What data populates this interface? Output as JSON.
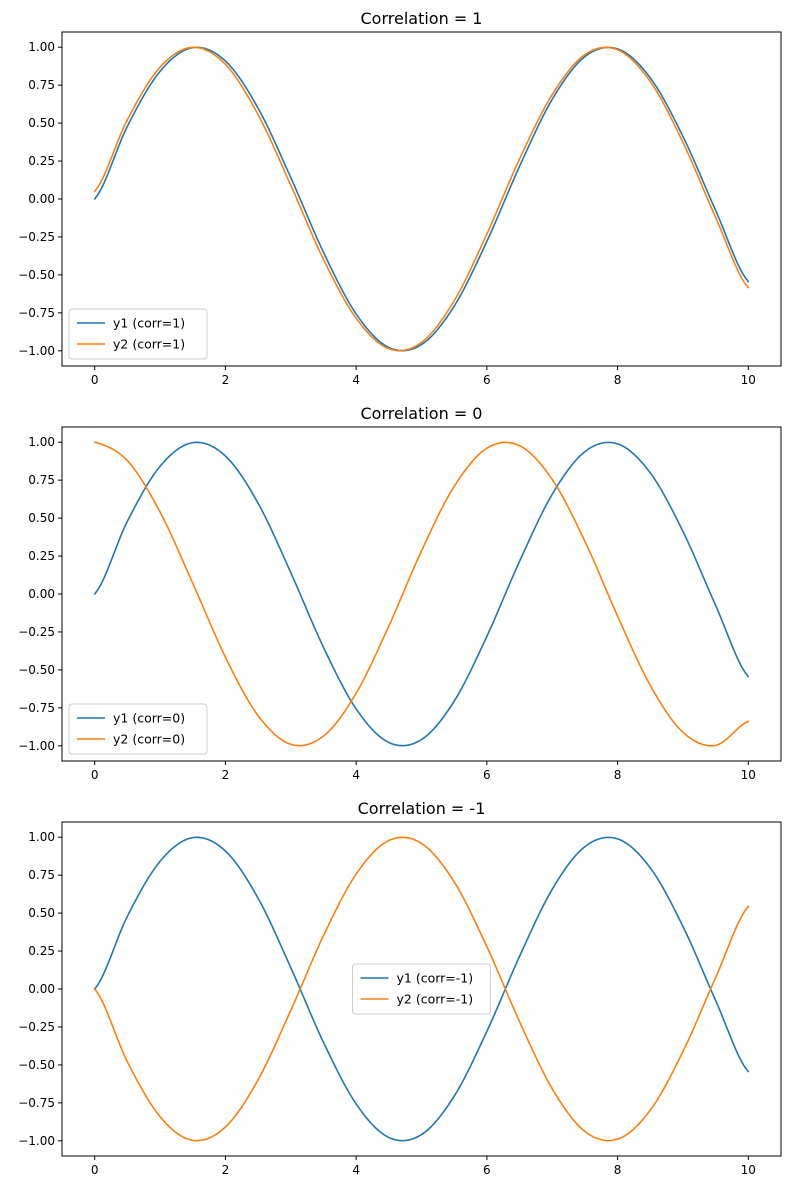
{
  "chart_data": [
    {
      "type": "line",
      "title": "Correlation = 1",
      "xlim": [
        -0.5,
        10.5
      ],
      "ylim": [
        -1.1,
        1.1
      ],
      "xticks": [
        0,
        2,
        4,
        6,
        8,
        10
      ],
      "xtick_labels": [
        "0",
        "2",
        "4",
        "6",
        "8",
        "10"
      ],
      "yticks": [
        -1.0,
        -0.75,
        -0.5,
        -0.25,
        0.0,
        0.25,
        0.5,
        0.75,
        1.0
      ],
      "ytick_labels": [
        "−1.00",
        "−0.75",
        "−0.50",
        "−0.25",
        "0.00",
        "0.25",
        "0.50",
        "0.75",
        "1.00"
      ],
      "grid": false,
      "legend_position": "lower-left",
      "x": [
        0,
        0.5,
        1,
        1.5,
        2,
        2.5,
        3,
        3.5,
        4,
        4.5,
        5,
        5.5,
        6,
        6.5,
        7,
        7.5,
        8,
        8.5,
        9,
        9.5,
        10
      ],
      "series": [
        {
          "name": "y1 (corr=1)",
          "color": "#1f77b4",
          "values": [
            0.0,
            0.479,
            0.841,
            0.997,
            0.909,
            0.598,
            0.141,
            -0.351,
            -0.757,
            -0.978,
            -0.959,
            -0.706,
            -0.279,
            0.215,
            0.657,
            0.938,
            0.989,
            0.798,
            0.412,
            -0.075,
            -0.544
          ]
        },
        {
          "name": "y2 (corr=1)",
          "color": "#ff7f0e",
          "values": [
            0.05,
            0.522,
            0.868,
            0.999,
            0.887,
            0.556,
            0.091,
            -0.397,
            -0.785,
            -0.986,
            -0.945,
            -0.671,
            -0.231,
            0.263,
            0.688,
            0.951,
            0.983,
            0.774,
            0.373,
            -0.121,
            -0.584
          ]
        }
      ]
    },
    {
      "type": "line",
      "title": "Correlation = 0",
      "xlim": [
        -0.5,
        10.5
      ],
      "ylim": [
        -1.1,
        1.1
      ],
      "xticks": [
        0,
        2,
        4,
        6,
        8,
        10
      ],
      "xtick_labels": [
        "0",
        "2",
        "4",
        "6",
        "8",
        "10"
      ],
      "yticks": [
        -1.0,
        -0.75,
        -0.5,
        -0.25,
        0.0,
        0.25,
        0.5,
        0.75,
        1.0
      ],
      "ytick_labels": [
        "−1.00",
        "−0.75",
        "−0.50",
        "−0.25",
        "0.00",
        "0.25",
        "0.50",
        "0.75",
        "1.00"
      ],
      "grid": false,
      "legend_position": "lower-left",
      "x": [
        0,
        0.5,
        1,
        1.5,
        2,
        2.5,
        3,
        3.5,
        4,
        4.5,
        5,
        5.5,
        6,
        6.5,
        7,
        7.5,
        8,
        8.5,
        9,
        9.5,
        10
      ],
      "series": [
        {
          "name": "y1 (corr=0)",
          "color": "#1f77b4",
          "values": [
            0.0,
            0.479,
            0.841,
            0.997,
            0.909,
            0.598,
            0.141,
            -0.351,
            -0.757,
            -0.978,
            -0.959,
            -0.706,
            -0.279,
            0.215,
            0.657,
            0.938,
            0.989,
            0.798,
            0.412,
            -0.075,
            -0.544
          ]
        },
        {
          "name": "y2 (corr=0)",
          "color": "#ff7f0e",
          "values": [
            1.0,
            0.878,
            0.54,
            0.071,
            -0.416,
            -0.801,
            -0.99,
            -0.936,
            -0.654,
            -0.211,
            0.284,
            0.709,
            0.96,
            0.977,
            0.754,
            0.347,
            -0.146,
            -0.602,
            -0.911,
            -0.997,
            -0.839
          ]
        }
      ]
    },
    {
      "type": "line",
      "title": "Correlation = -1",
      "xlim": [
        -0.5,
        10.5
      ],
      "ylim": [
        -1.1,
        1.1
      ],
      "xticks": [
        0,
        2,
        4,
        6,
        8,
        10
      ],
      "xtick_labels": [
        "0",
        "2",
        "4",
        "6",
        "8",
        "10"
      ],
      "yticks": [
        -1.0,
        -0.75,
        -0.5,
        -0.25,
        0.0,
        0.25,
        0.5,
        0.75,
        1.0
      ],
      "ytick_labels": [
        "−1.00",
        "−0.75",
        "−0.50",
        "−0.25",
        "0.00",
        "0.25",
        "0.50",
        "0.75",
        "1.00"
      ],
      "grid": false,
      "legend_position": "center",
      "x": [
        0,
        0.5,
        1,
        1.5,
        2,
        2.5,
        3,
        3.5,
        4,
        4.5,
        5,
        5.5,
        6,
        6.5,
        7,
        7.5,
        8,
        8.5,
        9,
        9.5,
        10
      ],
      "series": [
        {
          "name": "y1 (corr=-1)",
          "color": "#1f77b4",
          "values": [
            0.0,
            0.479,
            0.841,
            0.997,
            0.909,
            0.598,
            0.141,
            -0.351,
            -0.757,
            -0.978,
            -0.959,
            -0.706,
            -0.279,
            0.215,
            0.657,
            0.938,
            0.989,
            0.798,
            0.412,
            -0.075,
            -0.544
          ]
        },
        {
          "name": "y2 (corr=-1)",
          "color": "#ff7f0e",
          "values": [
            0.0,
            -0.479,
            -0.841,
            -0.997,
            -0.909,
            -0.598,
            -0.141,
            0.351,
            0.757,
            0.978,
            0.959,
            0.706,
            0.279,
            -0.215,
            -0.657,
            -0.938,
            -0.989,
            -0.798,
            -0.412,
            0.075,
            0.544
          ]
        }
      ]
    }
  ]
}
